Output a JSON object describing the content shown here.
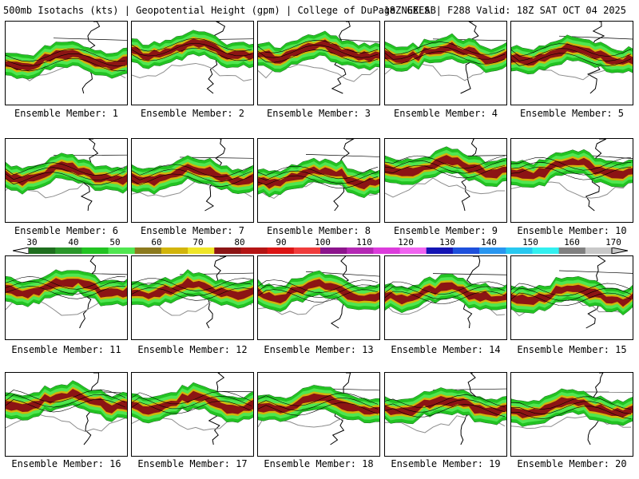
{
  "header": {
    "left": "500mb Isotachs (kts) | Geopotential Height (gpm) | College of DuPage NEXLAB",
    "right": "18Z GEFS | F288 Valid: 18Z SAT OCT 04 2025"
  },
  "members": [
    {
      "label": "Ensemble Member: 1"
    },
    {
      "label": "Ensemble Member: 2"
    },
    {
      "label": "Ensemble Member: 3"
    },
    {
      "label": "Ensemble Member: 4"
    },
    {
      "label": "Ensemble Member: 5"
    },
    {
      "label": "Ensemble Member: 6"
    },
    {
      "label": "Ensemble Member: 7"
    },
    {
      "label": "Ensemble Member: 8"
    },
    {
      "label": "Ensemble Member: 9"
    },
    {
      "label": "Ensemble Member: 10"
    },
    {
      "label": "Ensemble Member: 11"
    },
    {
      "label": "Ensemble Member: 12"
    },
    {
      "label": "Ensemble Member: 13"
    },
    {
      "label": "Ensemble Member: 14"
    },
    {
      "label": "Ensemble Member: 15"
    },
    {
      "label": "Ensemble Member: 16"
    },
    {
      "label": "Ensemble Member: 17"
    },
    {
      "label": "Ensemble Member: 18"
    },
    {
      "label": "Ensemble Member: 19"
    },
    {
      "label": "Ensemble Member: 20"
    }
  ],
  "colorbar": {
    "tick_labels": [
      "30",
      "40",
      "50",
      "60",
      "70",
      "80",
      "90",
      "100",
      "110",
      "120",
      "130",
      "140",
      "150",
      "160",
      "170"
    ],
    "colors": [
      "#1e6e1e",
      "#2a962a",
      "#22c322",
      "#50e650",
      "#8c7a1e",
      "#d2b40a",
      "#f0e628",
      "#8c1414",
      "#b41414",
      "#dc1414",
      "#f03c3c",
      "#8c148c",
      "#b428b4",
      "#dc3cdc",
      "#f064f0",
      "#1414b4",
      "#1e50dc",
      "#2896f0",
      "#28c8f0",
      "#32f0f0",
      "#808080",
      "#c8c8c8"
    ]
  }
}
